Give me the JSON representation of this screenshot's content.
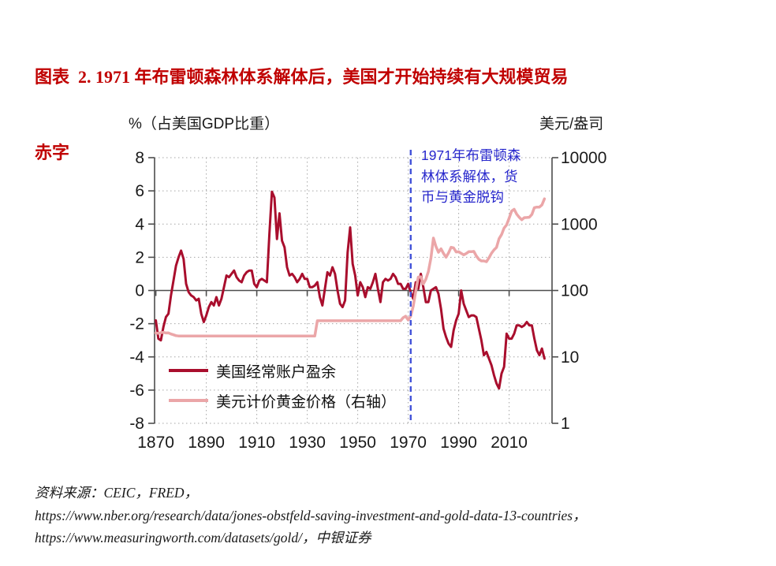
{
  "figure_title": {
    "line1": "图表  2. 1971 年布雷顿森林体系解体后，美国才开始持续有大规模贸易",
    "line2": "赤字",
    "color": "#C00000"
  },
  "chart": {
    "left_axis_title": "%（占美国GDP比重）",
    "right_axis_title": "美元/盎司",
    "annotation": {
      "line1": "1971年布雷顿森",
      "line2": "林体系解体，货",
      "line3": "币与黄金脱钩",
      "color": "#2727CC",
      "event_year": 1971
    }
  },
  "chart_data": {
    "type": "line",
    "title": "1971年布雷顿森林体系解体后，美国才开始持续有大规模贸易赤字",
    "left_y_label": "%（占美国GDP比重）",
    "right_y_label": "美元/盎司",
    "x_ticks": [
      1870,
      1890,
      1910,
      1930,
      1950,
      1970,
      1990,
      2010
    ],
    "left_y_ticks": [
      8,
      6,
      4,
      2,
      0,
      -2,
      -4,
      -6,
      -8
    ],
    "left_ylim": [
      -8,
      8
    ],
    "right_y_ticks": [
      10000,
      1000,
      100,
      10,
      1
    ],
    "right_ylim": [
      1,
      10000
    ],
    "right_y_scale": "log",
    "grid": "dotted",
    "legend_position": "inside-bottom-left",
    "x_start": 1870,
    "x_step": 1,
    "series": [
      {
        "name": "美国经常账户盈余",
        "axis": "left",
        "color": "#A90E2D",
        "width": 3,
        "values": [
          -1.8,
          -2.9,
          -3,
          -2.2,
          -1.6,
          -1.4,
          -0.3,
          0.6,
          1.5,
          2,
          2.4,
          1.9,
          0.4,
          -0.1,
          -0.3,
          -0.4,
          -0.6,
          -0.5,
          -1.4,
          -1.9,
          -1.5,
          -1,
          -0.7,
          -0.9,
          -0.4,
          -0.9,
          -0.5,
          0.2,
          0.9,
          0.8,
          1,
          1.2,
          0.8,
          0.6,
          0.5,
          0.9,
          1.1,
          1.2,
          1.2,
          0.4,
          0.2,
          0.6,
          0.7,
          0.6,
          0.5,
          3.4,
          5.95,
          5.6,
          3.1,
          4.65,
          3,
          2.6,
          1.4,
          0.9,
          1,
          0.8,
          0.5,
          0.7,
          1,
          0.7,
          0.7,
          0.2,
          0.2,
          0.3,
          0.5,
          -0.4,
          -0.9,
          0.1,
          1.1,
          0.9,
          1.4,
          1,
          0,
          -0.8,
          -1,
          -0.6,
          2.3,
          3.8,
          1.6,
          0.9,
          -0.3,
          0.5,
          0.2,
          -0.4,
          0.2,
          0.1,
          0.5,
          1,
          0.1,
          -0.7,
          0.5,
          0.7,
          0.6,
          0.7,
          1,
          0.8,
          0.4,
          0.4,
          0.1,
          0.1,
          0.4,
          -0.1,
          -0.5,
          0.5,
          0.1,
          1,
          0.2,
          -0.7,
          -0.7,
          0,
          0.1,
          0.2,
          -0.2,
          -1.1,
          -2.3,
          -2.8,
          -3.2,
          -3.4,
          -2.4,
          -1.8,
          -1.4,
          0,
          -0.8,
          -1.2,
          -1.6,
          -1.5,
          -1.5,
          -1.6,
          -2.3,
          -3,
          -3.9,
          -3.7,
          -4.1,
          -4.5,
          -5.1,
          -5.6,
          -5.9,
          -5,
          -4.6,
          -2.6,
          -2.9,
          -2.9,
          -2.6,
          -2.1,
          -2.1,
          -2.2,
          -2.1,
          -1.9,
          -2.1,
          -2.1,
          -2.9,
          -3.6,
          -3.9,
          -3.5,
          -4.1
        ]
      },
      {
        "name": "美元计价黄金价格（右轴）",
        "axis": "right",
        "color": "#EBA6A8",
        "width": 3.5,
        "values": [
          22.9,
          22.7,
          23.2,
          23.4,
          22.9,
          23,
          22.1,
          21.5,
          20.9,
          20.67,
          20.67,
          20.67,
          20.67,
          20.67,
          20.67,
          20.67,
          20.67,
          20.67,
          20.67,
          20.67,
          20.67,
          20.67,
          20.67,
          20.67,
          20.67,
          20.67,
          20.67,
          20.67,
          20.67,
          20.67,
          20.67,
          20.67,
          20.67,
          20.67,
          20.67,
          20.67,
          20.67,
          20.67,
          20.67,
          20.67,
          20.67,
          20.67,
          20.67,
          20.67,
          20.67,
          20.67,
          20.67,
          20.67,
          20.67,
          20.67,
          20.67,
          20.67,
          20.67,
          20.67,
          20.67,
          20.67,
          20.67,
          20.67,
          20.67,
          20.67,
          20.67,
          20.67,
          20.67,
          20.67,
          35,
          35,
          35,
          35,
          35,
          35,
          35,
          35,
          35,
          35,
          35,
          35,
          35,
          35,
          35,
          35,
          35,
          35,
          35,
          35,
          35,
          35,
          35,
          35,
          35,
          35,
          35,
          35,
          35,
          35,
          35,
          35,
          35,
          35,
          39,
          41,
          36,
          41,
          58,
          97,
          159,
          161,
          125,
          148,
          193,
          306,
          615,
          460,
          376,
          424,
          361,
          317,
          368,
          447,
          437,
          381,
          383,
          362,
          344,
          360,
          384,
          384,
          388,
          331,
          294,
          279,
          279,
          271,
          310,
          363,
          409,
          445,
          603,
          695,
          872,
          972,
          1225,
          1572,
          1669,
          1411,
          1266,
          1160,
          1251,
          1257,
          1268,
          1393,
          1770,
          1800,
          1801,
          1943,
          2400
        ]
      }
    ],
    "vline": {
      "x": 1971,
      "style": "dashed",
      "color": "#4353D9",
      "label": "1971年布雷顿森林体系解体，货币与黄金脱钩"
    }
  },
  "source": {
    "line1": "资料来源：CEIC，FRED，",
    "line2": "https://www.nber.org/research/data/jones-obstfeld-saving-investment-and-gold-data-13-countries，",
    "line3": "https://www.measuringworth.com/datasets/gold/，中银证券"
  }
}
